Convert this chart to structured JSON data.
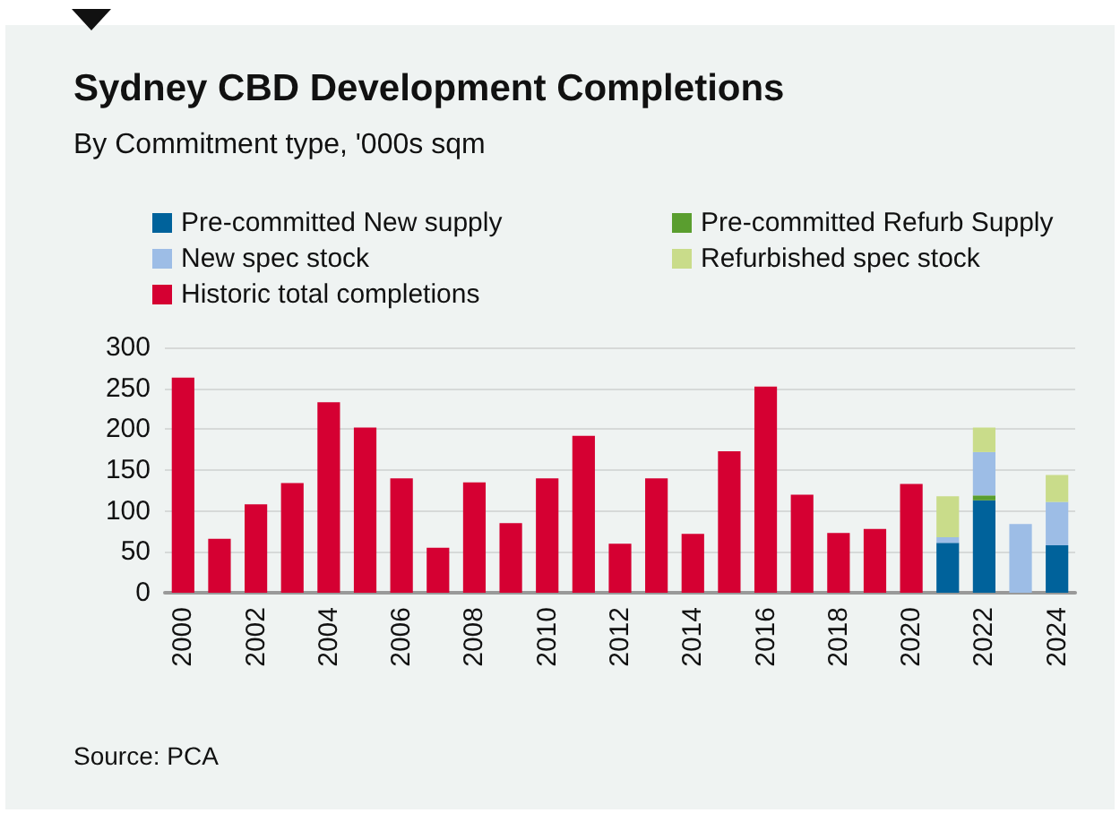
{
  "chart_data": {
    "type": "bar",
    "title": "Sydney CBD Development Completions",
    "subtitle": "By Commitment type, '000s sqm",
    "categories": [
      "2000",
      null,
      "2002",
      null,
      "2004",
      null,
      "2006",
      null,
      "2008",
      null,
      "2010",
      null,
      "2012",
      null,
      "2014",
      null,
      "2016",
      null,
      "2018",
      null,
      "2020",
      null,
      "2022",
      null,
      "2024"
    ],
    "series": [
      {
        "name": "Pre-committed New supply",
        "color": "#00629b",
        "values": [
          null,
          null,
          null,
          null,
          null,
          null,
          null,
          null,
          null,
          null,
          null,
          null,
          null,
          null,
          null,
          null,
          null,
          null,
          null,
          null,
          null,
          61,
          113,
          null,
          58
        ]
      },
      {
        "name": "Pre-committed Refurb Supply",
        "color": "#5a9e2f",
        "values": [
          null,
          null,
          null,
          null,
          null,
          null,
          null,
          null,
          null,
          null,
          null,
          null,
          null,
          null,
          null,
          null,
          null,
          null,
          null,
          null,
          null,
          null,
          6,
          null,
          null
        ]
      },
      {
        "name": "New spec stock",
        "color": "#9dbde6",
        "values": [
          null,
          null,
          null,
          null,
          null,
          null,
          null,
          null,
          null,
          null,
          null,
          null,
          null,
          null,
          null,
          null,
          null,
          null,
          null,
          null,
          null,
          7,
          53,
          84,
          53
        ]
      },
      {
        "name": "Refurbished spec stock",
        "color": "#c9dc8a",
        "values": [
          null,
          null,
          null,
          null,
          null,
          null,
          null,
          null,
          null,
          null,
          null,
          null,
          null,
          null,
          null,
          null,
          null,
          null,
          null,
          null,
          null,
          50,
          30,
          null,
          33
        ]
      },
      {
        "name": "Historic total completions",
        "color": "#d50032",
        "values": [
          263,
          66,
          108,
          134,
          233,
          202,
          140,
          55,
          135,
          85,
          140,
          192,
          60,
          140,
          72,
          173,
          252,
          120,
          73,
          78,
          133,
          null,
          null,
          null,
          null
        ]
      }
    ],
    "stacked": true,
    "ylim": [
      0,
      300
    ],
    "yticks": [
      0,
      50,
      100,
      150,
      200,
      250,
      300
    ],
    "grid": "y",
    "legend": "top",
    "annotations": [
      "Source: PCA"
    ]
  }
}
